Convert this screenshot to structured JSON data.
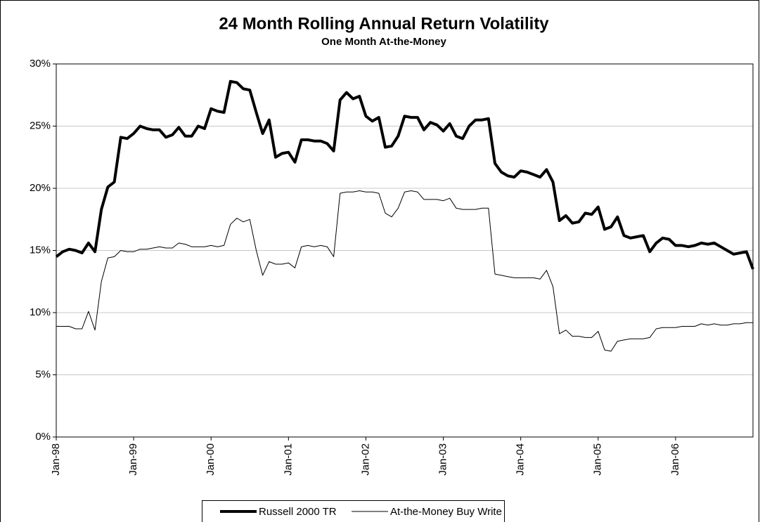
{
  "chart_data": {
    "type": "line",
    "title": "24 Month Rolling Annual Return Volatility",
    "subtitle": "One Month At-the-Money",
    "categories": [
      "Jan-98",
      null,
      null,
      null,
      null,
      null,
      null,
      null,
      null,
      null,
      null,
      null,
      "Jan-99",
      null,
      null,
      null,
      null,
      null,
      null,
      null,
      null,
      null,
      null,
      null,
      "Jan-00",
      null,
      null,
      null,
      null,
      null,
      null,
      null,
      null,
      null,
      null,
      null,
      "Jan-01",
      null,
      null,
      null,
      null,
      null,
      null,
      null,
      null,
      null,
      null,
      null,
      "Jan-02",
      null,
      null,
      null,
      null,
      null,
      null,
      null,
      null,
      null,
      null,
      null,
      "Jan-03",
      null,
      null,
      null,
      null,
      null,
      null,
      null,
      null,
      null,
      null,
      null,
      "Jan-04",
      null,
      null,
      null,
      null,
      null,
      null,
      null,
      null,
      null,
      null,
      null,
      "Jan-05",
      null,
      null,
      null,
      null,
      null,
      null,
      null,
      null,
      null,
      null,
      null,
      "Jan-06",
      null,
      null,
      null,
      null,
      null,
      null,
      null,
      null,
      null,
      null,
      null,
      null
    ],
    "series": [
      {
        "name": "Russell 2000 TR",
        "color": "#000000",
        "width": 4,
        "values": [
          14.5,
          14.9,
          15.1,
          15.0,
          14.8,
          15.6,
          14.9,
          18.3,
          20.1,
          20.5,
          24.1,
          24.0,
          24.4,
          25.0,
          24.8,
          24.7,
          24.7,
          24.1,
          24.3,
          24.9,
          24.2,
          24.2,
          25.0,
          24.8,
          26.4,
          26.2,
          26.1,
          28.6,
          28.5,
          28.0,
          27.9,
          26.1,
          24.4,
          25.5,
          22.5,
          22.8,
          22.9,
          22.1,
          23.9,
          23.9,
          23.8,
          23.8,
          23.6,
          23.0,
          27.1,
          27.7,
          27.2,
          27.4,
          25.8,
          25.4,
          25.7,
          23.3,
          23.4,
          24.2,
          25.8,
          25.7,
          25.7,
          24.7,
          25.3,
          25.1,
          24.6,
          25.2,
          24.2,
          24.0,
          25.0,
          25.5,
          25.5,
          25.6,
          22.0,
          21.3,
          21.0,
          20.9,
          21.4,
          21.3,
          21.1,
          20.9,
          21.5,
          20.5,
          17.4,
          17.8,
          17.2,
          17.3,
          18.0,
          17.9,
          18.5,
          16.7,
          16.9,
          17.7,
          16.2,
          16.0,
          16.1,
          16.2,
          14.9,
          15.6,
          16.0,
          15.9,
          15.4,
          15.4,
          15.3,
          15.4,
          15.6,
          15.5,
          15.6,
          15.3,
          15.0,
          14.7,
          14.8,
          14.9,
          13.5
        ]
      },
      {
        "name": "At-the-Money Buy Write",
        "color": "#000000",
        "width": 1,
        "values": [
          8.9,
          8.9,
          8.9,
          8.7,
          8.7,
          10.1,
          8.6,
          12.5,
          14.4,
          14.5,
          15.0,
          14.9,
          14.9,
          15.1,
          15.1,
          15.2,
          15.3,
          15.2,
          15.2,
          15.6,
          15.5,
          15.3,
          15.3,
          15.3,
          15.4,
          15.3,
          15.4,
          17.1,
          17.6,
          17.3,
          17.5,
          15.0,
          13.0,
          14.1,
          13.9,
          13.9,
          14.0,
          13.6,
          15.3,
          15.4,
          15.3,
          15.4,
          15.3,
          14.5,
          19.6,
          19.7,
          19.7,
          19.8,
          19.7,
          19.7,
          19.6,
          18.0,
          17.7,
          18.4,
          19.7,
          19.8,
          19.7,
          19.1,
          19.1,
          19.1,
          19.0,
          19.2,
          18.4,
          18.3,
          18.3,
          18.3,
          18.4,
          18.4,
          13.1,
          13.0,
          12.9,
          12.8,
          12.8,
          12.8,
          12.8,
          12.7,
          13.4,
          12.1,
          8.3,
          8.6,
          8.1,
          8.1,
          8.0,
          8.0,
          8.5,
          7.0,
          6.9,
          7.7,
          7.8,
          7.9,
          7.9,
          7.9,
          8.0,
          8.7,
          8.8,
          8.8,
          8.8,
          8.9,
          8.9,
          8.9,
          9.1,
          9.0,
          9.1,
          9.0,
          9.0,
          9.1,
          9.1,
          9.2,
          9.2
        ]
      }
    ],
    "ylim": [
      0,
      30
    ],
    "yticks": [
      {
        "value": 0,
        "label": "0%"
      },
      {
        "value": 5,
        "label": "5%"
      },
      {
        "value": 10,
        "label": "10%"
      },
      {
        "value": 15,
        "label": "15%"
      },
      {
        "value": 20,
        "label": "20%"
      },
      {
        "value": 25,
        "label": "25%"
      },
      {
        "value": 30,
        "label": "30%"
      }
    ],
    "grid": true
  }
}
